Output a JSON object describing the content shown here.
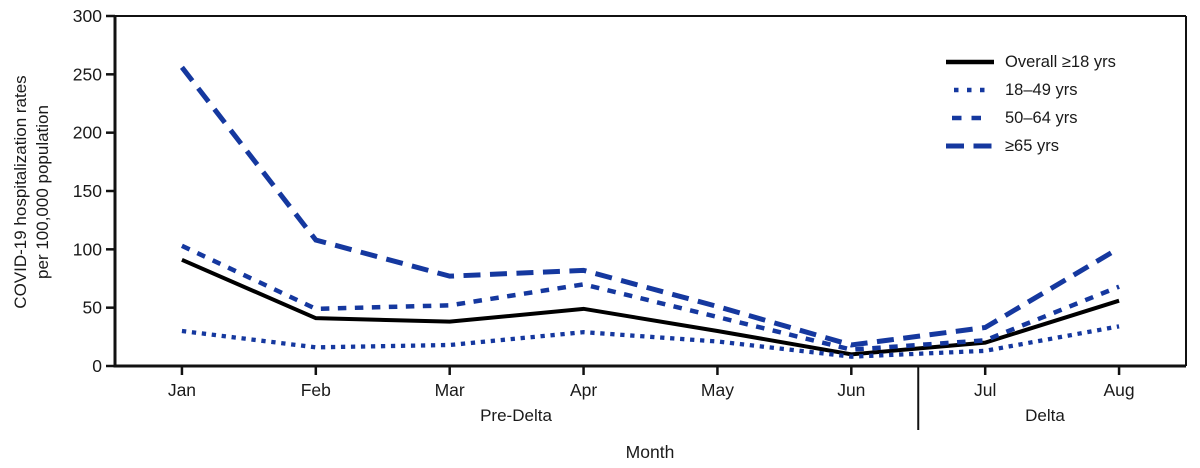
{
  "colors": {
    "series_blue": "#15389f",
    "series_black": "#000000",
    "axis": "#111111",
    "text": "#1a1a1a"
  },
  "chart_data": {
    "type": "line",
    "title": "",
    "categories": [
      "Jan",
      "Feb",
      "Mar",
      "Apr",
      "May",
      "Jun",
      "Jul",
      "Aug"
    ],
    "series": [
      {
        "name": "Overall ≥18 yrs",
        "color": "#000000",
        "dash": "",
        "width": 4,
        "values": [
          91,
          41,
          38,
          49,
          30,
          10,
          20,
          56
        ]
      },
      {
        "name": "18–49 yrs",
        "color": "#15389f",
        "dash": "4.3 5.7",
        "width": 4.3,
        "values": [
          30,
          16,
          18,
          29,
          21,
          8,
          13,
          34
        ]
      },
      {
        "name": "50–64 yrs",
        "color": "#15389f",
        "dash": "8.5 8.5",
        "width": 4.5,
        "values": [
          103,
          49,
          52,
          70,
          42,
          14,
          22,
          68
        ]
      },
      {
        "name": "≥65 yrs",
        "color": "#15389f",
        "dash": "17 9.5",
        "width": 5,
        "values": [
          256,
          108,
          77,
          82,
          51,
          18,
          33,
          101
        ]
      }
    ],
    "ylabel_lines": [
      "COVID-19 hospitalization rates",
      "per 100,000 population"
    ],
    "ylabel": "COVID-19 hospitalization rates per 100,000 population",
    "xlabel": "Month",
    "yticks": [
      0,
      50,
      100,
      150,
      200,
      250,
      300
    ],
    "ylim": [
      0,
      300
    ],
    "grid": false,
    "legend_position": "top-right",
    "period_labels": {
      "pre": "Pre-Delta",
      "delta": "Delta"
    },
    "separator_between": [
      "Jun",
      "Jul"
    ]
  }
}
